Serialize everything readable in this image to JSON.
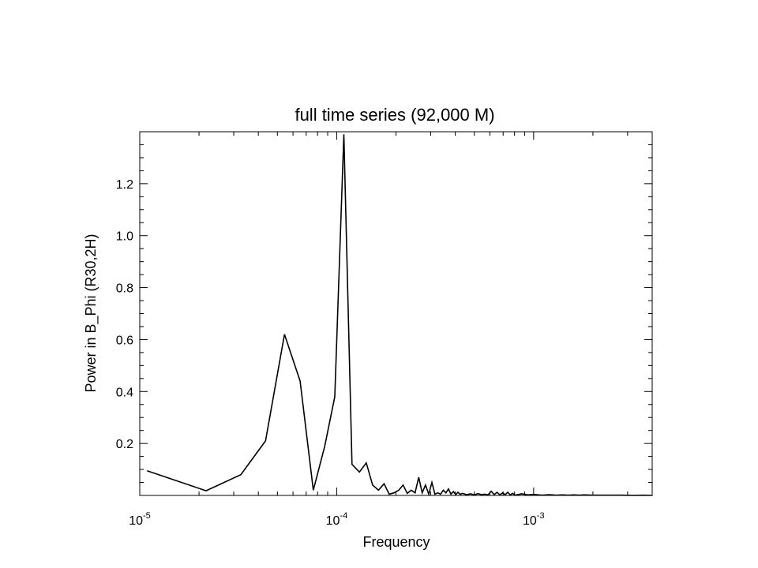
{
  "chart_data": {
    "type": "line",
    "title": "full time series (92,000 M)",
    "xlabel": "Frequency",
    "ylabel": "Power in B_Phi (R30,2H)",
    "xscale": "log",
    "xlim": [
      1e-05,
      0.004
    ],
    "ylim": [
      0,
      1.4
    ],
    "grid": false,
    "legend": "none",
    "line_color": "#000000",
    "x_ticks": [
      {
        "base": "10",
        "exp": "-5"
      },
      {
        "base": "10",
        "exp": "-4"
      },
      {
        "base": "10",
        "exp": "-3"
      }
    ],
    "y_ticks": [
      "0.2",
      "0.4",
      "0.6",
      "0.8",
      "1.0",
      "1.2"
    ],
    "series": [
      {
        "x": [
          1.09e-05,
          2.17e-05,
          3.26e-05,
          4.35e-05,
          5.43e-05,
          6.52e-05,
          7.61e-05,
          8.7e-05,
          9.78e-05,
          0.0001087,
          0.0001196,
          0.0001304,
          0.0001413,
          0.0001522,
          0.000163,
          0.0001739,
          0.0001848,
          0.0001957,
          0.0002065,
          0.0002174,
          0.0002283,
          0.0002391,
          0.00025,
          0.0002609,
          0.0002717,
          0.0002826,
          0.0002935,
          0.0003043,
          0.0003152,
          0.0003261,
          0.000337,
          0.0003478,
          0.0003587,
          0.0003696,
          0.0003804,
          0.0003913,
          0.0004022,
          0.000413,
          0.0004239,
          0.0004348,
          0.0004565,
          0.0004783,
          0.0005,
          0.0005217,
          0.0005435,
          0.0005652,
          0.000587,
          0.0006087,
          0.0006304,
          0.0006522,
          0.0006739,
          0.0006957,
          0.0007174,
          0.0007391,
          0.0007609,
          0.0007826,
          0.0008043,
          0.0008696,
          0.0009348,
          0.001,
          0.0011,
          0.0012,
          0.0013,
          0.0014,
          0.0015,
          0.0016,
          0.0017,
          0.0018,
          0.002,
          0.0022,
          0.0025,
          0.0028,
          0.0032,
          0.0036,
          0.004
        ],
        "y": [
          0.095,
          0.018,
          0.08,
          0.21,
          0.62,
          0.44,
          0.02,
          0.19,
          0.38,
          1.39,
          0.12,
          0.09,
          0.125,
          0.04,
          0.02,
          0.045,
          0.005,
          0.01,
          0.02,
          0.04,
          0.008,
          0.02,
          0.01,
          0.07,
          0.01,
          0.04,
          0.005,
          0.05,
          0.005,
          0.01,
          0.005,
          0.02,
          0.01,
          0.025,
          0.005,
          0.015,
          0.003,
          0.012,
          0.004,
          0.008,
          0.003,
          0.006,
          0.002,
          0.007,
          0.003,
          0.005,
          0.002,
          0.016,
          0.003,
          0.012,
          0.002,
          0.01,
          0.003,
          0.012,
          0.002,
          0.008,
          0.001,
          0.006,
          0.002,
          0.004,
          0.001,
          0.003,
          0.001,
          0.002,
          0.001,
          0.002,
          0.001,
          0.002,
          0.001,
          0.001,
          0.001,
          0.001,
          0.0,
          0.001,
          0.0
        ]
      }
    ]
  }
}
